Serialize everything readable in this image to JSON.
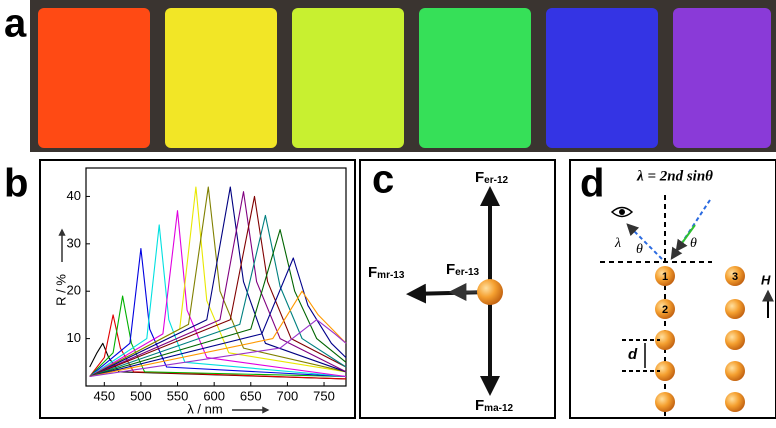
{
  "panel_labels": [
    "a",
    "b",
    "c",
    "d"
  ],
  "chart_data": {
    "type": "line",
    "xlabel": "λ / nm",
    "ylabel": "R / %",
    "xlim": [
      425,
      780
    ],
    "ylim": [
      0,
      46
    ],
    "xticks": [
      450,
      500,
      550,
      600,
      650,
      700,
      750
    ],
    "yticks": [
      10,
      20,
      30,
      40
    ],
    "series": [
      {
        "color": "#000000",
        "x": [
          430,
          440,
          448,
          456,
          470,
          780
        ],
        "values": [
          4,
          7,
          9,
          6,
          3,
          1.5
        ]
      },
      {
        "color": "#e00000",
        "x": [
          430,
          450,
          462,
          472,
          490,
          780
        ],
        "values": [
          2,
          6,
          15,
          8,
          3,
          1.5
        ]
      },
      {
        "color": "#00b000",
        "x": [
          430,
          462,
          475,
          487,
          505,
          780
        ],
        "values": [
          2,
          7,
          19,
          9,
          3,
          2
        ]
      },
      {
        "color": "#0000e0",
        "x": [
          430,
          485,
          500,
          512,
          535,
          780
        ],
        "values": [
          2,
          9,
          29,
          12,
          4,
          2
        ]
      },
      {
        "color": "#00e0e0",
        "x": [
          430,
          508,
          525,
          538,
          560,
          780
        ],
        "values": [
          2,
          10,
          34,
          14,
          5,
          2
        ]
      },
      {
        "color": "#e000e0",
        "x": [
          430,
          530,
          550,
          563,
          590,
          780
        ],
        "values": [
          2,
          11,
          37,
          16,
          6,
          2
        ]
      },
      {
        "color": "#e8e800",
        "x": [
          430,
          553,
          575,
          590,
          620,
          780
        ],
        "values": [
          2,
          12,
          42,
          18,
          7,
          3
        ]
      },
      {
        "color": "#808000",
        "x": [
          430,
          565,
          592,
          608,
          640,
          780
        ],
        "values": [
          2,
          13,
          42,
          20,
          8,
          3
        ]
      },
      {
        "color": "#000080",
        "x": [
          430,
          590,
          622,
          640,
          670,
          780
        ],
        "values": [
          2,
          14,
          42,
          22,
          9,
          3
        ]
      },
      {
        "color": "#800080",
        "x": [
          430,
          608,
          640,
          658,
          690,
          780
        ],
        "values": [
          2,
          14,
          41,
          22,
          10,
          3
        ]
      },
      {
        "color": "#800000",
        "x": [
          430,
          622,
          655,
          673,
          705,
          780
        ],
        "values": [
          2,
          14,
          40,
          22,
          10,
          4
        ]
      },
      {
        "color": "#008080",
        "x": [
          430,
          635,
          670,
          690,
          720,
          780
        ],
        "values": [
          2,
          13,
          36,
          21,
          10,
          4
        ]
      },
      {
        "color": "#006400",
        "x": [
          430,
          650,
          690,
          710,
          740,
          780
        ],
        "values": [
          2,
          12,
          33,
          20,
          10,
          5
        ]
      },
      {
        "color": "#00008b",
        "x": [
          430,
          665,
          708,
          728,
          760,
          780
        ],
        "values": [
          2,
          11,
          27,
          17,
          9,
          6
        ]
      },
      {
        "color": "#ff9900",
        "x": [
          430,
          680,
          720,
          742,
          780
        ],
        "values": [
          2,
          10,
          20,
          15,
          9
        ]
      },
      {
        "color": "#9932cc",
        "x": [
          430,
          690,
          740,
          765,
          780
        ],
        "values": [
          2,
          8,
          14,
          11,
          9
        ]
      }
    ]
  },
  "diagram_c": {
    "forces": [
      {
        "main": "F",
        "sub": "er-12"
      },
      {
        "main": "F",
        "sub": "er-13"
      },
      {
        "main": "F",
        "sub": "mr-13"
      },
      {
        "main": "F",
        "sub": "ma-12"
      }
    ]
  },
  "diagram_d": {
    "formula": "λ = 2nd sinθ",
    "wavelength": "λ",
    "angle_left": "θ",
    "angle_right": "θ",
    "particles": [
      "1",
      "2",
      "3"
    ],
    "spacing": "d",
    "field": "H"
  }
}
